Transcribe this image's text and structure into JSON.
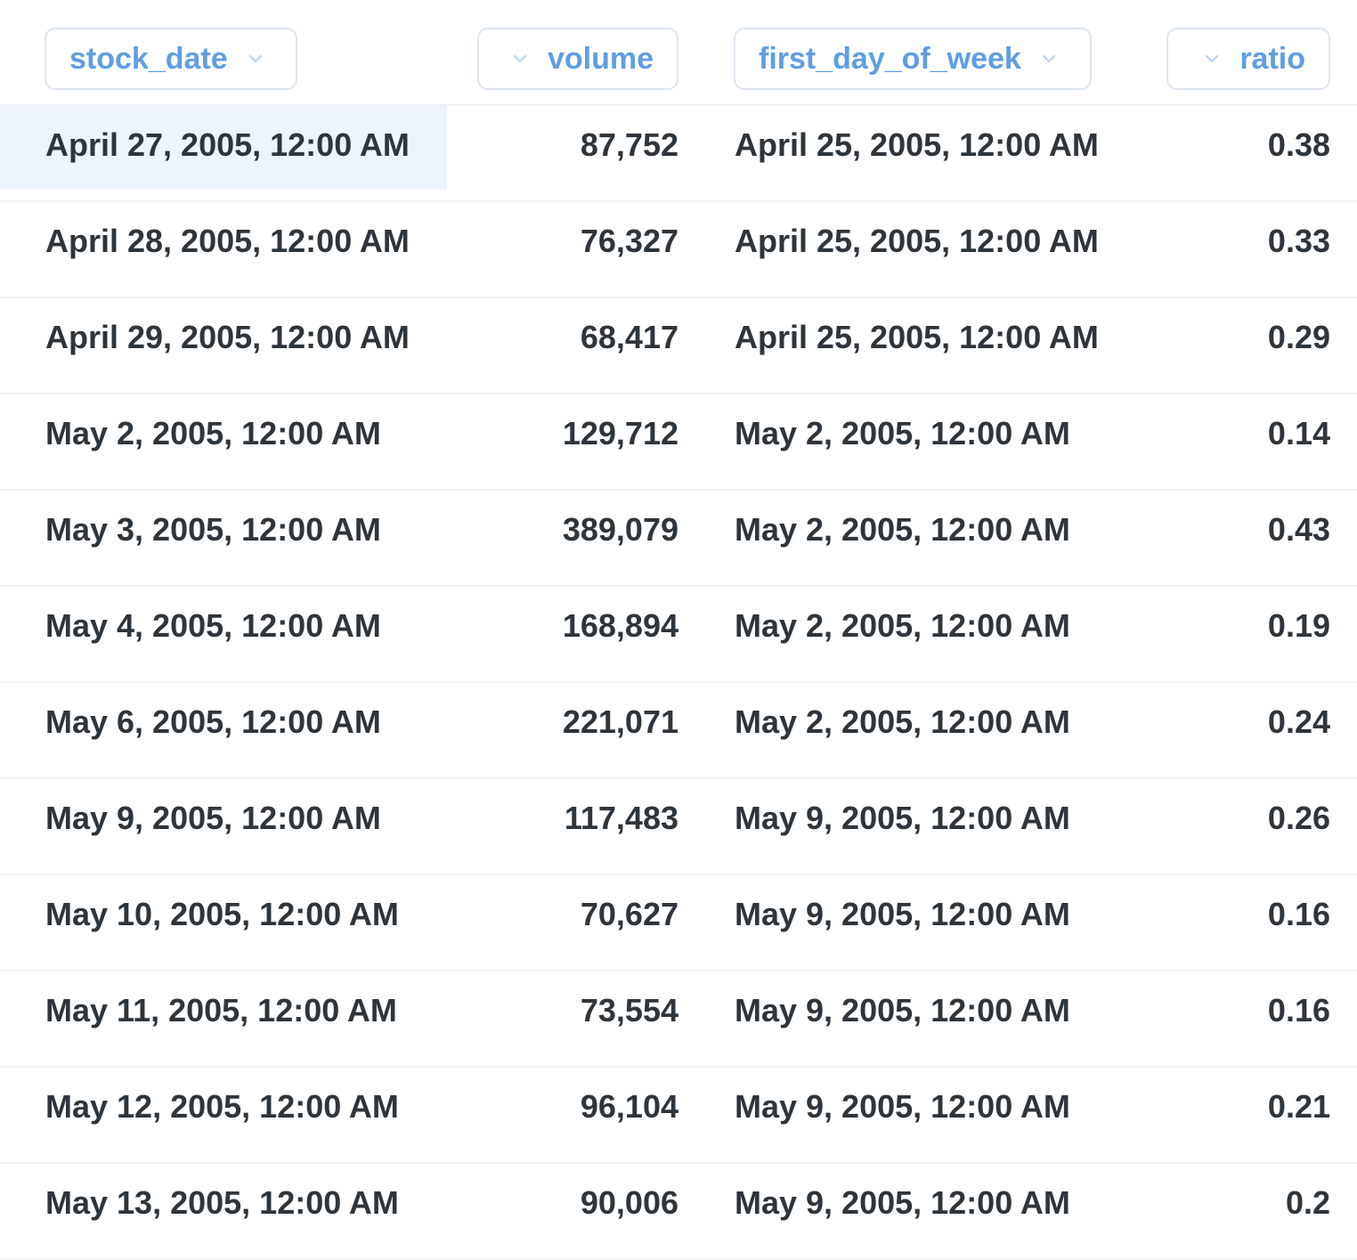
{
  "table": {
    "columns": [
      {
        "name": "stock_date",
        "align": "left"
      },
      {
        "name": "volume",
        "align": "right"
      },
      {
        "name": "first_day_of_week",
        "align": "left"
      },
      {
        "name": "ratio",
        "align": "right"
      }
    ],
    "rows": [
      {
        "stock_date": "April 27, 2005, 12:00 AM",
        "volume": "87,752",
        "first_day_of_week": "April 25, 2005, 12:00 AM",
        "ratio": "0.38"
      },
      {
        "stock_date": "April 28, 2005, 12:00 AM",
        "volume": "76,327",
        "first_day_of_week": "April 25, 2005, 12:00 AM",
        "ratio": "0.33"
      },
      {
        "stock_date": "April 29, 2005, 12:00 AM",
        "volume": "68,417",
        "first_day_of_week": "April 25, 2005, 12:00 AM",
        "ratio": "0.29"
      },
      {
        "stock_date": "May 2, 2005, 12:00 AM",
        "volume": "129,712",
        "first_day_of_week": "May 2, 2005, 12:00 AM",
        "ratio": "0.14"
      },
      {
        "stock_date": "May 3, 2005, 12:00 AM",
        "volume": "389,079",
        "first_day_of_week": "May 2, 2005, 12:00 AM",
        "ratio": "0.43"
      },
      {
        "stock_date": "May 4, 2005, 12:00 AM",
        "volume": "168,894",
        "first_day_of_week": "May 2, 2005, 12:00 AM",
        "ratio": "0.19"
      },
      {
        "stock_date": "May 6, 2005, 12:00 AM",
        "volume": "221,071",
        "first_day_of_week": "May 2, 2005, 12:00 AM",
        "ratio": "0.24"
      },
      {
        "stock_date": "May 9, 2005, 12:00 AM",
        "volume": "117,483",
        "first_day_of_week": "May 9, 2005, 12:00 AM",
        "ratio": "0.26"
      },
      {
        "stock_date": "May 10, 2005, 12:00 AM",
        "volume": "70,627",
        "first_day_of_week": "May 9, 2005, 12:00 AM",
        "ratio": "0.16"
      },
      {
        "stock_date": "May 11, 2005, 12:00 AM",
        "volume": "73,554",
        "first_day_of_week": "May 9, 2005, 12:00 AM",
        "ratio": "0.16"
      },
      {
        "stock_date": "May 12, 2005, 12:00 AM",
        "volume": "96,104",
        "first_day_of_week": "May 9, 2005, 12:00 AM",
        "ratio": "0.21"
      },
      {
        "stock_date": "May 13, 2005, 12:00 AM",
        "volume": "90,006",
        "first_day_of_week": "May 9, 2005, 12:00 AM",
        "ratio": "0.2"
      }
    ],
    "highlighted_cell": {
      "row": 0,
      "column": "stock_date"
    }
  },
  "icons": {
    "column_menu": "chevron-down-icon"
  },
  "colors": {
    "header_text": "#5f9ee3",
    "header_border": "#dde6f1",
    "cell_text": "#2e353b",
    "highlight": "#eef4fc",
    "row_divider": "#f2f3f5"
  }
}
